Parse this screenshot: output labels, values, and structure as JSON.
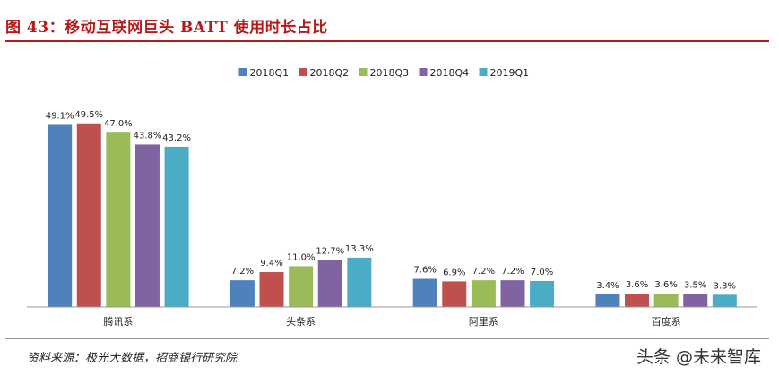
{
  "figure": {
    "title": "图 43：移动互联网巨头 BATT 使用时长占比",
    "source": "资料来源：极光大数据，招商银行研究院",
    "watermark": "头条 @未来智库"
  },
  "chart_data": {
    "type": "bar",
    "title": "",
    "xlabel": "",
    "ylabel": "",
    "ylim": [
      0,
      55
    ],
    "grid": false,
    "legend_position": "top-center",
    "categories": [
      "腾讯系",
      "头条系",
      "阿里系",
      "百度系"
    ],
    "series": [
      {
        "name": "2018Q1",
        "color": "#4f81bd",
        "values": [
          49.1,
          7.2,
          7.6,
          3.4
        ],
        "labels": [
          "49.1%",
          "7.2%",
          "7.6%",
          "3.4%"
        ]
      },
      {
        "name": "2018Q2",
        "color": "#c0504d",
        "values": [
          49.5,
          9.4,
          6.9,
          3.6
        ],
        "labels": [
          "49.5%",
          "9.4%",
          "6.9%",
          "3.6%"
        ]
      },
      {
        "name": "2018Q3",
        "color": "#9bbb59",
        "values": [
          47.0,
          11.0,
          7.2,
          3.6
        ],
        "labels": [
          "47.0%",
          "11.0%",
          "7.2%",
          "3.6%"
        ]
      },
      {
        "name": "2018Q4",
        "color": "#8064a2",
        "values": [
          43.8,
          12.7,
          7.2,
          3.5
        ],
        "labels": [
          "43.8%",
          "12.7%",
          "7.2%",
          "3.5%"
        ]
      },
      {
        "name": "2019Q1",
        "color": "#4bacc6",
        "values": [
          43.2,
          13.3,
          7.0,
          3.3
        ],
        "labels": [
          "43.2%",
          "13.3%",
          "7.0%",
          "3.3%"
        ]
      }
    ]
  }
}
